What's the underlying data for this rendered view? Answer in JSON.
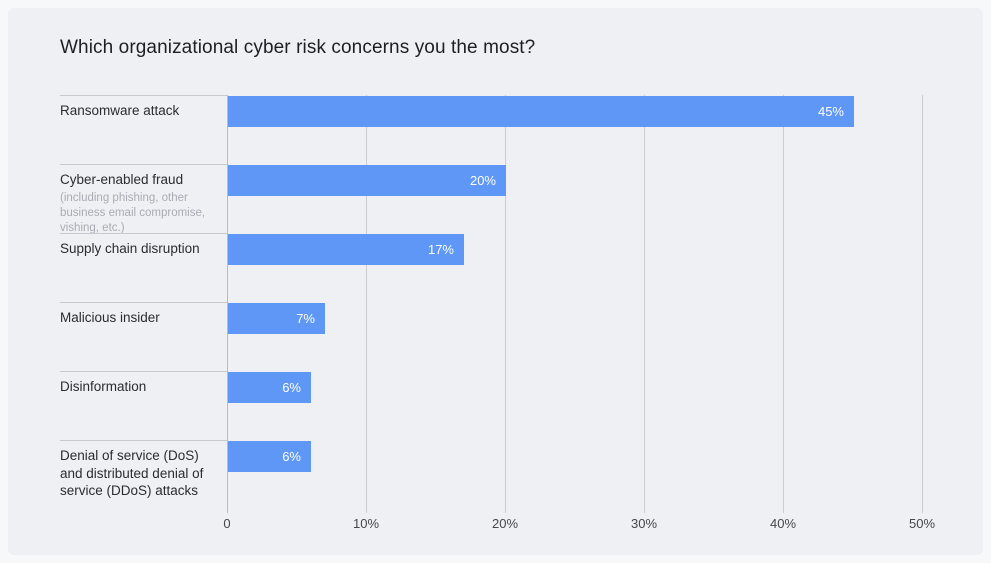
{
  "chart_data": {
    "type": "bar",
    "orientation": "horizontal",
    "title": "Which organizational cyber risk concerns you the most?",
    "categories": [
      {
        "label": "Ransomware attack",
        "sublabel": "",
        "value": 45,
        "display": "45%"
      },
      {
        "label": "Cyber-enabled fraud",
        "sublabel": "(including phishing, other business email compromise, vishing, etc.)",
        "value": 20,
        "display": "20%"
      },
      {
        "label": "Supply chain disruption",
        "sublabel": "",
        "value": 17,
        "display": "17%"
      },
      {
        "label": "Malicious insider",
        "sublabel": "",
        "value": 7,
        "display": "7%"
      },
      {
        "label": "Disinformation",
        "sublabel": "",
        "value": 6,
        "display": "6%"
      },
      {
        "label": "Denial of service (DoS) and distributed denial of service (DDoS) attacks",
        "sublabel": "",
        "value": 6,
        "display": "6%"
      }
    ],
    "x_ticks": [
      "0",
      "10%",
      "20%",
      "30%",
      "40%",
      "50%"
    ],
    "xlim": [
      0,
      50
    ],
    "grid": "vertical",
    "legend": "none",
    "value_labels": "inside-bar-right"
  },
  "colors": {
    "bar": "#5f97f6",
    "page_background": "#f7f8fa",
    "card_background": "#eef0f3",
    "gridline": "#c9cdd4",
    "axis_line": "#b7bbc4",
    "row_divider": "#c6cad0",
    "title_text": "#1e1f21",
    "label_text": "#2a2c2f",
    "sublabel_text": "#a8acb4",
    "tick_text": "#45474b",
    "value_text": "#ffffff"
  }
}
